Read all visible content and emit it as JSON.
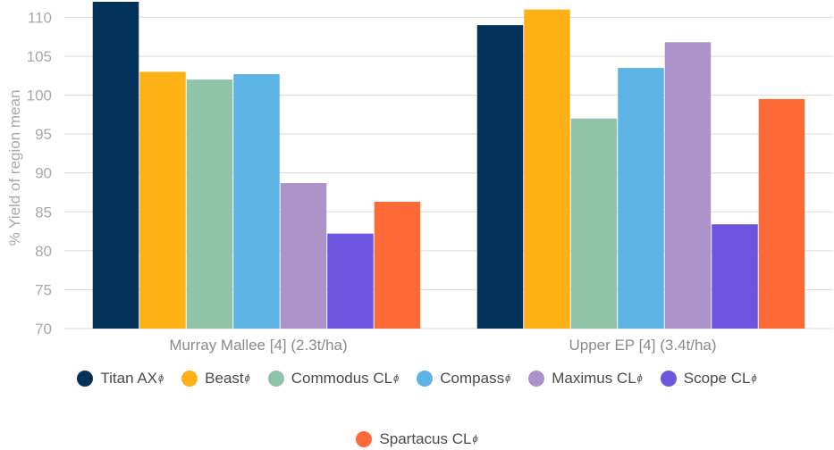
{
  "chart_data": {
    "type": "bar",
    "ylabel": "% Yield of region mean",
    "ylim": [
      70,
      112
    ],
    "yticks": [
      70,
      75,
      80,
      85,
      90,
      95,
      100,
      105,
      110
    ],
    "grid": true,
    "legend_position": "bottom",
    "categories": [
      "Murray Mallee [4] (2.3t/ha)",
      "Upper EP [4] (3.4t/ha)"
    ],
    "series": [
      {
        "name": "Titan AX",
        "sup": "ϕ",
        "color": "#02315a",
        "values": [
          112.0,
          109.0
        ]
      },
      {
        "name": "Beast",
        "sup": "ϕ",
        "color": "#fdb116",
        "values": [
          103.0,
          111.0
        ]
      },
      {
        "name": "Commodus CL",
        "sup": "ϕ",
        "color": "#8fc4a8",
        "values": [
          102.0,
          97.0
        ]
      },
      {
        "name": "Compass",
        "sup": "ϕ",
        "color": "#5db4e4",
        "values": [
          102.7,
          103.5
        ]
      },
      {
        "name": "Maximus CL",
        "sup": "ϕ",
        "color": "#ab93c9",
        "values": [
          88.7,
          106.8
        ]
      },
      {
        "name": "Scope CL",
        "sup": "ϕ",
        "color": "#6d55de",
        "values": [
          82.2,
          83.4
        ]
      },
      {
        "name": "Spartacus CL",
        "sup": "ϕ",
        "color": "#fd6a37",
        "values": [
          86.3,
          99.5
        ]
      }
    ]
  }
}
